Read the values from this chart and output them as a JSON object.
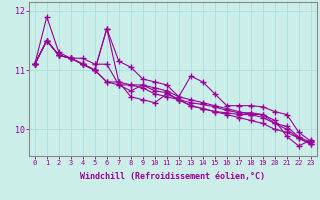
{
  "title": "",
  "xlabel": "Windchill (Refroidissement éolien,°C)",
  "ylabel": "",
  "bg_color": "#cceee8",
  "line_color": "#990099",
  "marker": "+",
  "linewidth": 0.8,
  "markersize": 4,
  "markerwidth": 1.0,
  "ylim": [
    9.55,
    12.15
  ],
  "xlim": [
    -0.5,
    23.5
  ],
  "yticks": [
    10,
    11,
    12
  ],
  "ytick_labels": [
    "10",
    "11",
    "12"
  ],
  "xticks": [
    0,
    1,
    2,
    3,
    4,
    5,
    6,
    7,
    8,
    9,
    10,
    11,
    12,
    13,
    14,
    15,
    16,
    17,
    18,
    19,
    20,
    21,
    22,
    23
  ],
  "series": [
    [
      11.1,
      11.9,
      11.3,
      11.2,
      11.2,
      11.1,
      11.1,
      10.75,
      10.75,
      10.75,
      10.7,
      10.65,
      10.55,
      10.5,
      10.45,
      10.4,
      10.35,
      10.3,
      10.25,
      10.2,
      10.1,
      10.0,
      9.85,
      9.75
    ],
    [
      11.1,
      11.5,
      11.25,
      11.2,
      11.1,
      11.0,
      11.7,
      11.15,
      11.05,
      10.85,
      10.8,
      10.75,
      10.55,
      10.9,
      10.8,
      10.6,
      10.4,
      10.4,
      10.4,
      10.38,
      10.3,
      10.25,
      9.95,
      9.8
    ],
    [
      11.1,
      11.5,
      11.25,
      11.2,
      11.1,
      11.0,
      10.8,
      10.8,
      10.75,
      10.7,
      10.6,
      10.55,
      10.5,
      10.4,
      10.35,
      10.3,
      10.25,
      10.2,
      10.15,
      10.1,
      10.0,
      9.95,
      9.85,
      9.75
    ],
    [
      11.1,
      11.5,
      11.25,
      11.2,
      11.1,
      11.0,
      10.8,
      10.75,
      10.65,
      10.75,
      10.65,
      10.62,
      10.5,
      10.4,
      10.35,
      10.3,
      10.28,
      10.25,
      10.25,
      10.25,
      10.1,
      10.05,
      9.87,
      9.78
    ],
    [
      11.1,
      11.5,
      11.25,
      11.2,
      11.1,
      11.0,
      11.7,
      10.8,
      10.55,
      10.5,
      10.45,
      10.6,
      10.5,
      10.45,
      10.42,
      10.38,
      10.32,
      10.28,
      10.28,
      10.25,
      10.15,
      9.88,
      9.72,
      9.82
    ]
  ],
  "grid_color": "#aadddd",
  "spine_color": "#888888",
  "xlabel_fontsize": 6,
  "tick_fontsize": 5,
  "ytick_fontsize": 6
}
